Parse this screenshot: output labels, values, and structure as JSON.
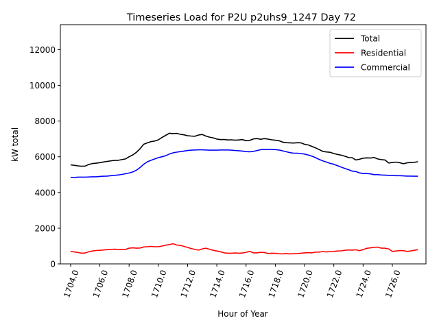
{
  "chart_data": {
    "type": "line",
    "title": "Timeseries Load for P2U p2uhs9_1247  Day 72",
    "xlabel": "Hour of Year",
    "ylabel": "kW total",
    "xlim": [
      1703.3,
      1728.3
    ],
    "ylim": [
      0,
      13400
    ],
    "x_ticks": [
      1704,
      1706,
      1708,
      1710,
      1712,
      1714,
      1716,
      1718,
      1720,
      1722,
      1724,
      1726
    ],
    "x_tick_labels": [
      "1704.0",
      "1706.0",
      "1708.0",
      "1710.0",
      "1712.0",
      "1714.0",
      "1716.0",
      "1718.0",
      "1720.0",
      "1722.0",
      "1724.0",
      "1726.0"
    ],
    "y_ticks": [
      0,
      2000,
      4000,
      6000,
      8000,
      10000,
      12000
    ],
    "y_tick_labels": [
      "0",
      "2000",
      "4000",
      "6000",
      "8000",
      "10000",
      "12000"
    ],
    "legend_position": "top-right",
    "x": [
      1704,
      1704.25,
      1704.5,
      1704.75,
      1705,
      1705.25,
      1705.5,
      1705.75,
      1706,
      1706.25,
      1706.5,
      1706.75,
      1707,
      1707.25,
      1707.5,
      1707.75,
      1708,
      1708.25,
      1708.5,
      1708.75,
      1709,
      1709.25,
      1709.5,
      1709.75,
      1710,
      1710.25,
      1710.5,
      1710.75,
      1711,
      1711.25,
      1711.5,
      1711.75,
      1712,
      1712.25,
      1712.5,
      1712.75,
      1713,
      1713.25,
      1713.5,
      1713.75,
      1714,
      1714.25,
      1714.5,
      1714.75,
      1715,
      1715.25,
      1715.5,
      1715.75,
      1716,
      1716.25,
      1716.5,
      1716.75,
      1717,
      1717.25,
      1717.5,
      1717.75,
      1718,
      1718.25,
      1718.5,
      1718.75,
      1719,
      1719.25,
      1719.5,
      1719.75,
      1720,
      1720.25,
      1720.5,
      1720.75,
      1721,
      1721.25,
      1721.5,
      1721.75,
      1722,
      1722.25,
      1722.5,
      1722.75,
      1723,
      1723.25,
      1723.5,
      1723.75,
      1724,
      1724.25,
      1724.5,
      1724.75,
      1725,
      1725.25,
      1725.5,
      1725.75,
      1726,
      1726.25,
      1726.5,
      1726.75,
      1727,
      1727.25,
      1727.5,
      1727.75
    ],
    "series": [
      {
        "name": "Total",
        "color": "#000000",
        "values": [
          5550,
          5520,
          5490,
          5470,
          5480,
          5570,
          5620,
          5640,
          5670,
          5710,
          5740,
          5770,
          5800,
          5800,
          5840,
          5880,
          6000,
          6100,
          6250,
          6450,
          6700,
          6780,
          6850,
          6880,
          6950,
          7080,
          7200,
          7320,
          7300,
          7310,
          7260,
          7230,
          7180,
          7160,
          7150,
          7220,
          7250,
          7160,
          7100,
          7060,
          6990,
          6960,
          6970,
          6940,
          6950,
          6930,
          6940,
          6960,
          6900,
          6920,
          7000,
          7020,
          6980,
          7020,
          6990,
          6950,
          6930,
          6900,
          6820,
          6790,
          6780,
          6770,
          6790,
          6780,
          6700,
          6660,
          6580,
          6500,
          6400,
          6300,
          6270,
          6250,
          6180,
          6130,
          6090,
          6030,
          5960,
          5950,
          5820,
          5860,
          5920,
          5940,
          5930,
          5960,
          5880,
          5840,
          5820,
          5650,
          5680,
          5700,
          5670,
          5610,
          5660,
          5680,
          5690,
          5720
        ]
      },
      {
        "name": "Residential",
        "color": "#ff0000",
        "values": [
          700,
          670,
          640,
          600,
          610,
          680,
          720,
          750,
          760,
          780,
          800,
          810,
          820,
          810,
          800,
          810,
          880,
          900,
          880,
          890,
          950,
          960,
          980,
          960,
          960,
          1000,
          1050,
          1080,
          1130,
          1060,
          1040,
          980,
          920,
          860,
          810,
          770,
          840,
          880,
          820,
          760,
          720,
          680,
          620,
          600,
          600,
          610,
          600,
          610,
          650,
          700,
          620,
          620,
          650,
          640,
          580,
          600,
          590,
          570,
          560,
          580,
          560,
          570,
          580,
          600,
          620,
          630,
          620,
          660,
          660,
          690,
          670,
          690,
          700,
          720,
          730,
          760,
          780,
          770,
          790,
          740,
          800,
          870,
          900,
          930,
          940,
          880,
          880,
          840,
          700,
          720,
          740,
          740,
          700,
          720,
          760,
          800
        ]
      },
      {
        "name": "Commercial",
        "color": "#0000ff",
        "values": [
          4850,
          4840,
          4860,
          4860,
          4860,
          4870,
          4880,
          4880,
          4900,
          4910,
          4920,
          4940,
          4960,
          4980,
          5010,
          5050,
          5090,
          5150,
          5250,
          5400,
          5580,
          5720,
          5800,
          5880,
          5950,
          6000,
          6060,
          6150,
          6220,
          6260,
          6290,
          6320,
          6350,
          6370,
          6380,
          6390,
          6390,
          6380,
          6370,
          6370,
          6370,
          6380,
          6380,
          6380,
          6370,
          6350,
          6340,
          6320,
          6290,
          6280,
          6300,
          6350,
          6400,
          6410,
          6420,
          6410,
          6400,
          6380,
          6330,
          6280,
          6230,
          6200,
          6200,
          6180,
          6150,
          6100,
          6030,
          5950,
          5850,
          5770,
          5700,
          5630,
          5580,
          5500,
          5420,
          5350,
          5280,
          5200,
          5170,
          5100,
          5060,
          5060,
          5040,
          5000,
          5000,
          4980,
          4970,
          4960,
          4950,
          4940,
          4940,
          4930,
          4920,
          4920,
          4910,
          4910
        ]
      }
    ]
  }
}
